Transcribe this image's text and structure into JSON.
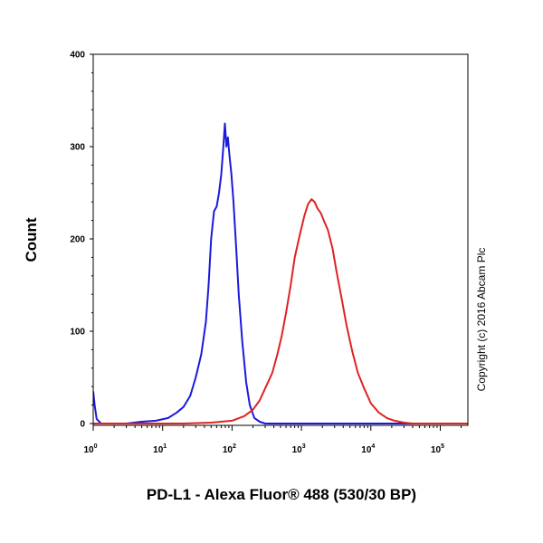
{
  "chart_data": {
    "type": "line",
    "xlabel": "PD-L1 - Alexa Fluor® 488 (530/30 BP)",
    "ylabel": "Count",
    "x_scale": "log",
    "xlim": [
      1,
      250000
    ],
    "ylim": [
      0,
      400
    ],
    "y_ticks": [
      "0",
      "100",
      "200",
      "300",
      "400"
    ],
    "x_ticks": [
      {
        "value": 1,
        "base": "10",
        "exp": "0"
      },
      {
        "value": 10,
        "base": "10",
        "exp": "1"
      },
      {
        "value": 100,
        "base": "10",
        "exp": "2"
      },
      {
        "value": 1000,
        "base": "10",
        "exp": "3"
      },
      {
        "value": 10000,
        "base": "10",
        "exp": "4"
      },
      {
        "value": 100000,
        "base": "10",
        "exp": "5"
      }
    ],
    "copyright": "Copyright (c) 2016 Abcam Plc",
    "grid": false,
    "series": [
      {
        "color": "#1a1adc",
        "points": [
          [
            1.0,
            35
          ],
          [
            1.05,
            20
          ],
          [
            1.12,
            5
          ],
          [
            1.3,
            0
          ],
          [
            3,
            0
          ],
          [
            5,
            2
          ],
          [
            8,
            3
          ],
          [
            12,
            6
          ],
          [
            16,
            12
          ],
          [
            20,
            18
          ],
          [
            25,
            30
          ],
          [
            30,
            50
          ],
          [
            36,
            75
          ],
          [
            42,
            110
          ],
          [
            46,
            150
          ],
          [
            50,
            200
          ],
          [
            55,
            230
          ],
          [
            60,
            235
          ],
          [
            65,
            250
          ],
          [
            70,
            270
          ],
          [
            75,
            300
          ],
          [
            79,
            325
          ],
          [
            83,
            300
          ],
          [
            87,
            310
          ],
          [
            92,
            290
          ],
          [
            98,
            270
          ],
          [
            105,
            240
          ],
          [
            115,
            190
          ],
          [
            125,
            140
          ],
          [
            140,
            90
          ],
          [
            160,
            45
          ],
          [
            180,
            20
          ],
          [
            210,
            6
          ],
          [
            250,
            2
          ],
          [
            300,
            0
          ],
          [
            250000,
            0
          ]
        ]
      },
      {
        "color": "#e02222",
        "points": [
          [
            1,
            0
          ],
          [
            20,
            0
          ],
          [
            50,
            1
          ],
          [
            100,
            3
          ],
          [
            150,
            8
          ],
          [
            200,
            15
          ],
          [
            250,
            25
          ],
          [
            300,
            38
          ],
          [
            380,
            55
          ],
          [
            450,
            75
          ],
          [
            520,
            95
          ],
          [
            600,
            120
          ],
          [
            700,
            150
          ],
          [
            800,
            180
          ],
          [
            950,
            205
          ],
          [
            1100,
            225
          ],
          [
            1250,
            238
          ],
          [
            1400,
            243
          ],
          [
            1550,
            240
          ],
          [
            1700,
            233
          ],
          [
            1900,
            228
          ],
          [
            2100,
            220
          ],
          [
            2400,
            210
          ],
          [
            2800,
            190
          ],
          [
            3200,
            165
          ],
          [
            3800,
            135
          ],
          [
            4500,
            105
          ],
          [
            5400,
            78
          ],
          [
            6500,
            55
          ],
          [
            8000,
            38
          ],
          [
            10000,
            22
          ],
          [
            13000,
            12
          ],
          [
            17000,
            6
          ],
          [
            22000,
            3
          ],
          [
            30000,
            1
          ],
          [
            40000,
            0
          ],
          [
            250000,
            0
          ]
        ]
      }
    ]
  }
}
